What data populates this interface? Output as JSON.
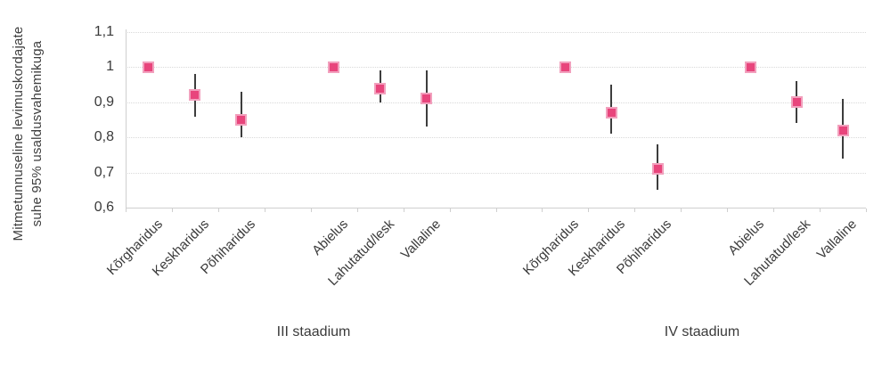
{
  "chart_data": {
    "type": "scatter",
    "title": "",
    "y_axis_title_lines": [
      "Mitmetunnuseline levimuskordajate",
      "suhe 95% usaldusvahemikuga"
    ],
    "y_axis": {
      "min": 0.6,
      "max": 1.1,
      "step": 0.1,
      "ticks": [
        {
          "value": 1.1,
          "label": "1,1"
        },
        {
          "value": 1.0,
          "label": "1"
        },
        {
          "value": 0.9,
          "label": "0,9"
        },
        {
          "value": 0.8,
          "label": "0,8"
        },
        {
          "value": 0.7,
          "label": "0,7"
        },
        {
          "value": 0.6,
          "label": "0,6"
        }
      ],
      "gridlines": "dotted"
    },
    "total_slots": 16,
    "groups": [
      {
        "label": "III staadium",
        "points": [
          {
            "category": "Kõrgharidus",
            "slot": 1,
            "value": 1.0,
            "ci_low": null,
            "ci_high": null
          },
          {
            "category": "Keskharidus",
            "slot": 2,
            "value": 0.92,
            "ci_low": 0.86,
            "ci_high": 0.98
          },
          {
            "category": "Põhiharidus",
            "slot": 3,
            "value": 0.85,
            "ci_low": 0.8,
            "ci_high": 0.93
          },
          {
            "category": "Abielus",
            "slot": 5,
            "value": 1.0,
            "ci_low": null,
            "ci_high": null
          },
          {
            "category": "Lahutatud/lesk",
            "slot": 6,
            "value": 0.94,
            "ci_low": 0.9,
            "ci_high": 0.99
          },
          {
            "category": "Vallaline",
            "slot": 7,
            "value": 0.91,
            "ci_low": 0.83,
            "ci_high": 0.99
          }
        ]
      },
      {
        "label": "IV staadium",
        "points": [
          {
            "category": "Kõrgharidus",
            "slot": 10,
            "value": 1.0,
            "ci_low": null,
            "ci_high": null
          },
          {
            "category": "Keskharidus",
            "slot": 11,
            "value": 0.87,
            "ci_low": 0.81,
            "ci_high": 0.95
          },
          {
            "category": "Põhiharidus",
            "slot": 12,
            "value": 0.71,
            "ci_low": 0.65,
            "ci_high": 0.78
          },
          {
            "category": "Abielus",
            "slot": 14,
            "value": 1.0,
            "ci_low": null,
            "ci_high": null
          },
          {
            "category": "Lahutatud/lesk",
            "slot": 15,
            "value": 0.9,
            "ci_low": 0.84,
            "ci_high": 0.96
          },
          {
            "category": "Vallaline",
            "slot": 16,
            "value": 0.82,
            "ci_low": 0.74,
            "ci_high": 0.91
          }
        ]
      }
    ],
    "colors": {
      "marker_fill": "#e8457c",
      "marker_border": "#f2a0bd",
      "error_bar": "#3d3d3d",
      "gridline": "#d9d9d9",
      "axis": "#cfcfcf",
      "text": "#3a3a3a"
    },
    "legend": "none"
  }
}
